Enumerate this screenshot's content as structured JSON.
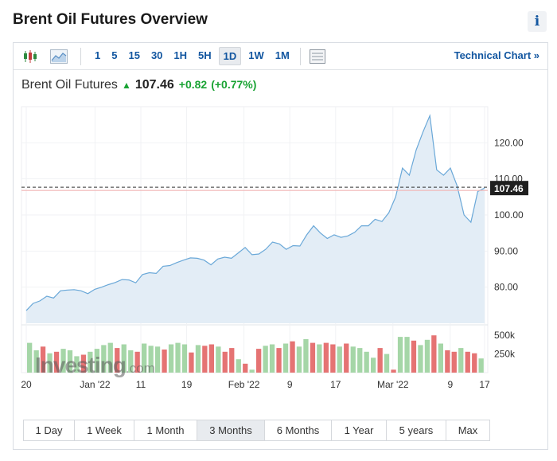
{
  "page": {
    "title": "Brent Oil Futures Overview"
  },
  "toolbar": {
    "timeframes": [
      "1",
      "5",
      "15",
      "30",
      "1H",
      "5H",
      "1D",
      "1W",
      "1M"
    ],
    "active_timeframe": "1D",
    "technical_chart_label": "Technical Chart »"
  },
  "quote": {
    "name": "Brent Oil Futures",
    "price": "107.46",
    "change": "+0.82",
    "change_pct": "(+0.77%)"
  },
  "colors": {
    "up": "#1aa334",
    "vol_up": "#a5d6a7",
    "vol_down": "#e57373",
    "line": "#6aa8d8",
    "area": "#e3edf6",
    "link": "#1256a0"
  },
  "watermark": {
    "main": "Investing",
    "suffix": ".com"
  },
  "ranges": [
    "1 Day",
    "1 Week",
    "1 Month",
    "3 Months",
    "6 Months",
    "1 Year",
    "5 years",
    "Max"
  ],
  "active_range": "3 Months",
  "chart_data": {
    "type": "line",
    "x_ticks": [
      "20",
      "Jan '22",
      "11",
      "19",
      "Feb '22",
      "9",
      "17",
      "Mar '22",
      "9",
      "17"
    ],
    "y_ticks": [
      "80.00",
      "90.00",
      "100.00",
      "110.00",
      "120.00"
    ],
    "ylim": [
      70,
      130
    ],
    "current_value": 107.46,
    "current_label": "107.46",
    "prices": [
      73.5,
      75.5,
      76.2,
      77.5,
      77.0,
      79.0,
      79.2,
      79.3,
      79.0,
      78.2,
      79.4,
      80.0,
      80.7,
      81.3,
      82.1,
      82.0,
      81.2,
      83.5,
      84.0,
      83.8,
      85.8,
      86.0,
      86.8,
      87.5,
      88.1,
      88.0,
      87.5,
      86.2,
      87.8,
      88.3,
      88.0,
      89.5,
      91.0,
      89.0,
      89.2,
      90.5,
      92.5,
      92.0,
      90.5,
      91.5,
      91.4,
      94.5,
      97.0,
      95.0,
      93.5,
      94.5,
      93.8,
      94.2,
      95.2,
      97.0,
      97.0,
      98.8,
      98.2,
      100.6,
      105.0,
      113.0,
      111.0,
      118.0,
      123.0,
      127.5,
      112.5,
      111.0,
      113.0,
      108.0,
      100.0,
      98.0,
      106.5,
      107.46
    ],
    "volume_ticks": [
      "250k",
      "500k"
    ],
    "volume_max": 620000,
    "volume": [
      {
        "v": 400000,
        "up": true
      },
      {
        "v": 300000,
        "up": true
      },
      {
        "v": 350000,
        "up": false
      },
      {
        "v": 260000,
        "up": true
      },
      {
        "v": 280000,
        "up": false
      },
      {
        "v": 320000,
        "up": true
      },
      {
        "v": 300000,
        "up": true
      },
      {
        "v": 220000,
        "up": true
      },
      {
        "v": 240000,
        "up": false
      },
      {
        "v": 280000,
        "up": true
      },
      {
        "v": 320000,
        "up": true
      },
      {
        "v": 370000,
        "up": true
      },
      {
        "v": 400000,
        "up": true
      },
      {
        "v": 330000,
        "up": false
      },
      {
        "v": 380000,
        "up": true
      },
      {
        "v": 300000,
        "up": true
      },
      {
        "v": 280000,
        "up": false
      },
      {
        "v": 390000,
        "up": true
      },
      {
        "v": 360000,
        "up": true
      },
      {
        "v": 350000,
        "up": true
      },
      {
        "v": 310000,
        "up": false
      },
      {
        "v": 380000,
        "up": true
      },
      {
        "v": 400000,
        "up": true
      },
      {
        "v": 380000,
        "up": true
      },
      {
        "v": 270000,
        "up": false
      },
      {
        "v": 370000,
        "up": true
      },
      {
        "v": 360000,
        "up": false
      },
      {
        "v": 380000,
        "up": false
      },
      {
        "v": 350000,
        "up": true
      },
      {
        "v": 280000,
        "up": false
      },
      {
        "v": 330000,
        "up": false
      },
      {
        "v": 180000,
        "up": true
      },
      {
        "v": 120000,
        "up": false
      },
      {
        "v": 40000,
        "up": true
      },
      {
        "v": 320000,
        "up": false
      },
      {
        "v": 360000,
        "up": true
      },
      {
        "v": 380000,
        "up": true
      },
      {
        "v": 330000,
        "up": false
      },
      {
        "v": 390000,
        "up": true
      },
      {
        "v": 420000,
        "up": false
      },
      {
        "v": 350000,
        "up": true
      },
      {
        "v": 450000,
        "up": true
      },
      {
        "v": 400000,
        "up": false
      },
      {
        "v": 380000,
        "up": true
      },
      {
        "v": 400000,
        "up": false
      },
      {
        "v": 380000,
        "up": false
      },
      {
        "v": 350000,
        "up": true
      },
      {
        "v": 390000,
        "up": false
      },
      {
        "v": 350000,
        "up": true
      },
      {
        "v": 330000,
        "up": true
      },
      {
        "v": 280000,
        "up": true
      },
      {
        "v": 200000,
        "up": true
      },
      {
        "v": 330000,
        "up": false
      },
      {
        "v": 250000,
        "up": true
      },
      {
        "v": 40000,
        "up": false
      },
      {
        "v": 480000,
        "up": true
      },
      {
        "v": 480000,
        "up": true
      },
      {
        "v": 430000,
        "up": false
      },
      {
        "v": 370000,
        "up": true
      },
      {
        "v": 440000,
        "up": true
      },
      {
        "v": 500000,
        "up": false
      },
      {
        "v": 390000,
        "up": true
      },
      {
        "v": 300000,
        "up": false
      },
      {
        "v": 280000,
        "up": false
      },
      {
        "v": 330000,
        "up": true
      },
      {
        "v": 280000,
        "up": false
      },
      {
        "v": 260000,
        "up": false
      },
      {
        "v": 190000,
        "up": true
      }
    ]
  }
}
